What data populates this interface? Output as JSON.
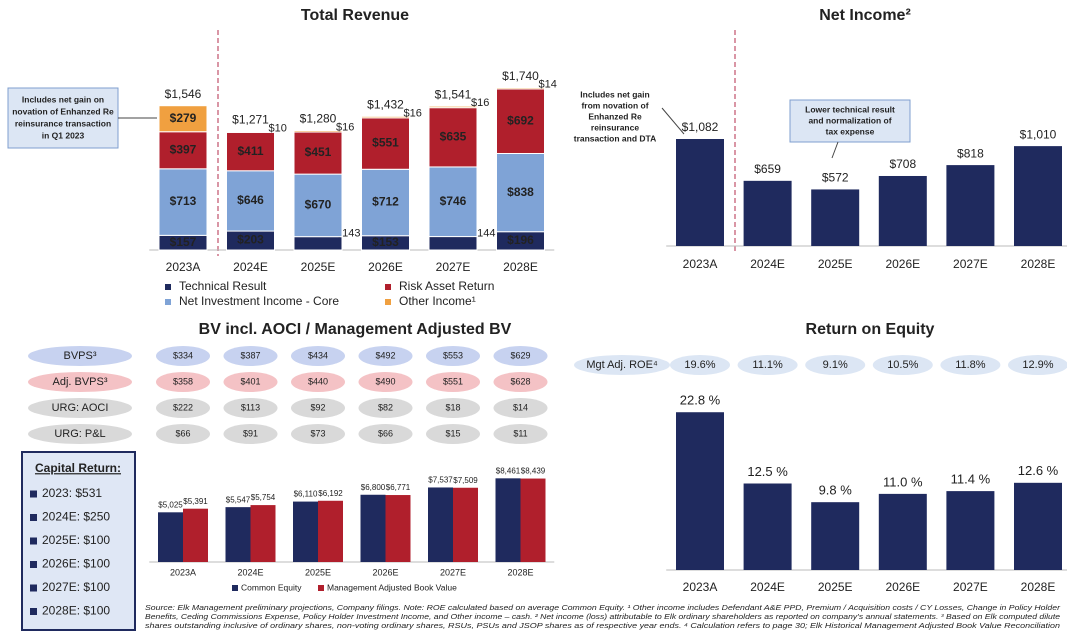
{
  "chart_data": [
    {
      "type": "stacked_bar",
      "title": "Total Revenue",
      "categories": [
        "2023A",
        "2024E",
        "2025E",
        "2026E",
        "2027E",
        "2028E"
      ],
      "series": [
        {
          "name": "Technical Result",
          "color": "#1f2a5e",
          "values": [
            157,
            203,
            143,
            153,
            144,
            196
          ],
          "value_labels": [
            "$157",
            "$203",
            "$143",
            "$153",
            "$144",
            "$196"
          ]
        },
        {
          "name": "Net Investment Income - Core",
          "color": "#7fa3d6",
          "values": [
            713,
            646,
            670,
            712,
            746,
            838
          ],
          "value_labels": [
            "$713",
            "$646",
            "$670",
            "$712",
            "$746",
            "$838"
          ]
        },
        {
          "name": "Risk Asset Return",
          "color": "#b01f2c",
          "values": [
            397,
            411,
            451,
            551,
            635,
            692
          ],
          "value_labels": [
            "$397",
            "$411",
            "$451",
            "$551",
            "$635",
            "$692"
          ]
        },
        {
          "name": "Other Income¹",
          "color": "#f0a040",
          "values": [
            279,
            10,
            16,
            16,
            16,
            14
          ],
          "value_labels": [
            "$279",
            "$10",
            "$16",
            "$16",
            "$16",
            "$14"
          ]
        }
      ],
      "totals": [
        1546,
        1271,
        1280,
        1432,
        1541,
        1740
      ],
      "total_labels": [
        "$1,546",
        "$1,271",
        "$1,280",
        "$1,432",
        "$1,541",
        "$1,740"
      ],
      "ylim": [
        0,
        1800
      ],
      "annotations": [
        [
          "Includes net gain on",
          "novation of Enhanzed Re",
          "reinsurance transaction",
          "in Q1 2023"
        ]
      ]
    },
    {
      "type": "bar",
      "title": "Net Income²",
      "categories": [
        "2023A",
        "2024E",
        "2025E",
        "2026E",
        "2027E",
        "2028E"
      ],
      "values": [
        1082,
        659,
        572,
        708,
        818,
        1010
      ],
      "value_labels": [
        "$1,082",
        "$659",
        "$572",
        "$708",
        "$818",
        "$1,010"
      ],
      "color": "#1f2a5e",
      "ylim": [
        0,
        1800
      ],
      "annotations": [
        [
          "Includes net gain",
          "from novation of",
          "Enhanzed Re",
          "reinsurance",
          "transaction and DTA"
        ],
        [
          "Lower technical result",
          "and normalization of",
          "tax expense"
        ]
      ]
    },
    {
      "type": "grouped_bar",
      "title": "BV incl. AOCI / Management Adjusted BV",
      "categories": [
        "2023A",
        "2024E",
        "2025E",
        "2026E",
        "2027E",
        "2028E"
      ],
      "series": [
        {
          "name": "Common Equity",
          "color": "#1f2a5e",
          "values": [
            5025,
            5547,
            6110,
            6800,
            7537,
            8461
          ],
          "value_labels": [
            "$5,025",
            "$5,547",
            "$6,110",
            "$6,800",
            "$7,537",
            "$8,461"
          ]
        },
        {
          "name": "Management Adjusted Book Value",
          "color": "#b01f2c",
          "values": [
            5391,
            5754,
            6192,
            6771,
            7509,
            8439
          ],
          "value_labels": [
            "$5,391",
            "$5,754",
            "$6,192",
            "$6,771",
            "$7,509",
            "$8,439"
          ]
        }
      ],
      "ylim": [
        0,
        9000
      ],
      "rows": [
        {
          "name": "BVPS³",
          "color": "#c7d2f0",
          "values": [
            334,
            387,
            434,
            492,
            553,
            629
          ],
          "value_labels": [
            "$334",
            "$387",
            "$434",
            "$492",
            "$553",
            "$629"
          ]
        },
        {
          "name": "Adj. BVPS³",
          "color": "#f4c2c5",
          "values": [
            358,
            401,
            440,
            490,
            551,
            628
          ],
          "value_labels": [
            "$358",
            "$401",
            "$440",
            "$490",
            "$551",
            "$628"
          ]
        },
        {
          "name": "URG: AOCI",
          "color": "#d9d9d9",
          "values": [
            222,
            113,
            92,
            82,
            18,
            14
          ],
          "value_labels": [
            "$222",
            "$113",
            "$92",
            "$82",
            "$18",
            "$14"
          ]
        },
        {
          "name": "URG: P&L",
          "color": "#d9d9d9",
          "values": [
            66,
            91,
            73,
            66,
            15,
            11
          ],
          "value_labels": [
            "$66",
            "$91",
            "$73",
            "$66",
            "$15",
            "$11"
          ]
        }
      ]
    },
    {
      "type": "bar",
      "title": "Return on Equity",
      "categories": [
        "2023A",
        "2024E",
        "2025E",
        "2026E",
        "2027E",
        "2028E"
      ],
      "values": [
        22.8,
        12.5,
        9.8,
        11.0,
        11.4,
        12.6
      ],
      "value_labels": [
        "22.8 %",
        "12.5 %",
        "9.8 %",
        "11.0 %",
        "11.4 %",
        "12.6 %"
      ],
      "color": "#1f2a5e",
      "ylim": [
        0,
        25
      ],
      "rows": [
        {
          "name": "Mgt Adj. ROE⁴",
          "color": "#dce6f4",
          "values": [
            19.6,
            11.1,
            9.1,
            10.5,
            11.8,
            12.9
          ],
          "value_labels": [
            "19.6%",
            "11.1%",
            "9.1%",
            "10.5%",
            "11.8%",
            "12.9%"
          ]
        }
      ]
    }
  ],
  "capital_return": {
    "title": "Capital Return:",
    "items": [
      "2023: $531",
      "2024E: $250",
      "2025E: $100",
      "2026E: $100",
      "2027E: $100",
      "2028E: $100"
    ]
  },
  "footnote": [
    "Source: Elk Management preliminary projections, Company filings. Note: ROE calculated based on average Common Equity. ¹ Other income includes Defendant A&E PPD, Premium / Acquisition costs / CY Losses, Change in Policy Holder",
    "Benefits, Ceding Commissions Expense, Policy Holder Investment Income, and Other income – cash. ² Net income (loss) attributable to Elk ordinary shareholders as reported on company's annual statements. ³ Based on Elk computed dilute",
    "shares outstanding inclusive of ordinary shares, non-voting ordinary shares, RSUs, PSUs and JSOP shares as of respective year ends. ⁴ Calculation refers to page 30; Elk Historical Management Adjusted Book Value Reconciliation"
  ]
}
